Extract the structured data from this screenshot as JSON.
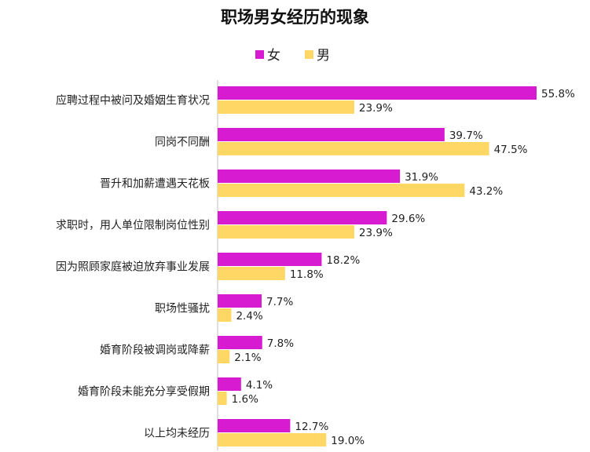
{
  "chart_data": {
    "type": "bar",
    "orientation": "horizontal",
    "title": "职场男女经历的现象",
    "categories": [
      "应聘过程中被问及婚姻生育状况",
      "同岗不同酬",
      "晋升和加薪遭遇天花板",
      "求职时，用人单位限制岗位性别",
      "因为照顾家庭被迫放弃事业发展",
      "职场性骚扰",
      "婚育阶段被调岗或降薪",
      "婚育阶段未能充分享受假期",
      "以上均未经历"
    ],
    "series": [
      {
        "name": "女",
        "color": "#D61BD1",
        "values": [
          55.8,
          39.7,
          31.9,
          29.6,
          18.2,
          7.7,
          7.8,
          4.1,
          12.7
        ],
        "labels": [
          "55.8%",
          "39.7%",
          "31.9%",
          "29.6%",
          "18.2%",
          "7.7%",
          "7.8%",
          "4.1%",
          "12.7%"
        ]
      },
      {
        "name": "男",
        "color": "#FFD764",
        "values": [
          23.9,
          47.5,
          43.2,
          23.9,
          11.8,
          2.4,
          2.1,
          1.6,
          19.0
        ],
        "labels": [
          "23.9%",
          "47.5%",
          "43.2%",
          "23.9%",
          "11.8%",
          "2.4%",
          "2.1%",
          "1.6%",
          "19.0%"
        ]
      }
    ],
    "xlim": [
      0,
      60
    ],
    "legend_position": "top-center",
    "grid": false,
    "axis_line_color": "#BFBFBF",
    "label_color": "#222222"
  }
}
